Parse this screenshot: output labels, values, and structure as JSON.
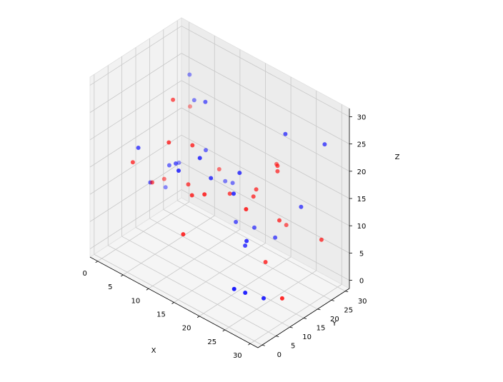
{
  "chart_data": {
    "type": "scatter",
    "projection": "3d",
    "xlabel": "X",
    "ylabel": "Y",
    "zlabel": "Z",
    "xlim": [
      -1.5,
      31.5
    ],
    "ylim": [
      -1.5,
      31.5
    ],
    "zlim": [
      -1.5,
      31.5
    ],
    "xticks": [
      0,
      5,
      10,
      15,
      20,
      25,
      30
    ],
    "yticks": [
      0,
      5,
      10,
      15,
      20,
      25,
      30
    ],
    "zticks": [
      0,
      5,
      10,
      15,
      20,
      25,
      30
    ],
    "grid": true,
    "series": [
      {
        "color": "#ff0000",
        "points": [
          [
            1,
            30,
            17
          ],
          [
            22,
            23,
            19
          ],
          [
            22,
            23,
            18
          ],
          [
            18,
            30,
            15
          ],
          [
            3,
            17,
            9
          ],
          [
            17,
            15,
            14
          ],
          [
            5,
            2,
            18
          ],
          [
            11,
            11,
            14
          ],
          [
            10,
            24,
            12
          ],
          [
            11,
            4,
            24
          ],
          [
            16,
            0,
            11
          ],
          [
            8,
            11,
            28
          ],
          [
            15,
            5,
            16
          ],
          [
            30,
            10,
            3
          ],
          [
            20,
            19,
            15
          ],
          [
            24,
            15,
            5
          ],
          [
            5,
            9,
            12
          ],
          [
            21,
            28,
            6
          ],
          [
            18,
            4,
            18
          ],
          [
            14,
            7,
            24
          ],
          [
            24,
            8,
            17
          ],
          [
            20,
            18,
            14
          ],
          [
            24,
            20,
            11
          ],
          [
            29,
            26,
            8
          ]
        ]
      },
      {
        "color": "#0000ff",
        "points": [
          [
            1,
            26,
            8
          ],
          [
            4,
            26,
            21
          ],
          [
            5,
            4,
            20
          ],
          [
            16,
            10,
            18
          ],
          [
            28,
            29,
            24
          ],
          [
            2,
            28,
            24
          ],
          [
            14,
            2,
            21
          ],
          [
            8,
            12,
            16
          ],
          [
            0,
            23,
            4
          ],
          [
            18,
            22,
            6
          ],
          [
            20,
            15,
            6
          ],
          [
            23,
            10,
            10
          ],
          [
            26,
            0,
            6
          ],
          [
            11,
            27,
            9
          ],
          [
            9,
            28,
            8
          ],
          [
            4,
            17,
            12
          ],
          [
            28,
            7,
            3
          ],
          [
            26,
            4,
            4
          ],
          [
            21,
            24,
            5
          ],
          [
            16,
            6,
            23
          ],
          [
            25,
            26,
            12
          ],
          [
            16,
            19,
            7
          ],
          [
            3,
            12,
            10
          ],
          [
            9,
            21,
            16
          ],
          [
            10,
            19,
            26
          ],
          [
            21,
            9,
            18
          ],
          [
            20,
            13,
            20
          ],
          [
            23,
            24,
            25
          ]
        ]
      }
    ]
  }
}
